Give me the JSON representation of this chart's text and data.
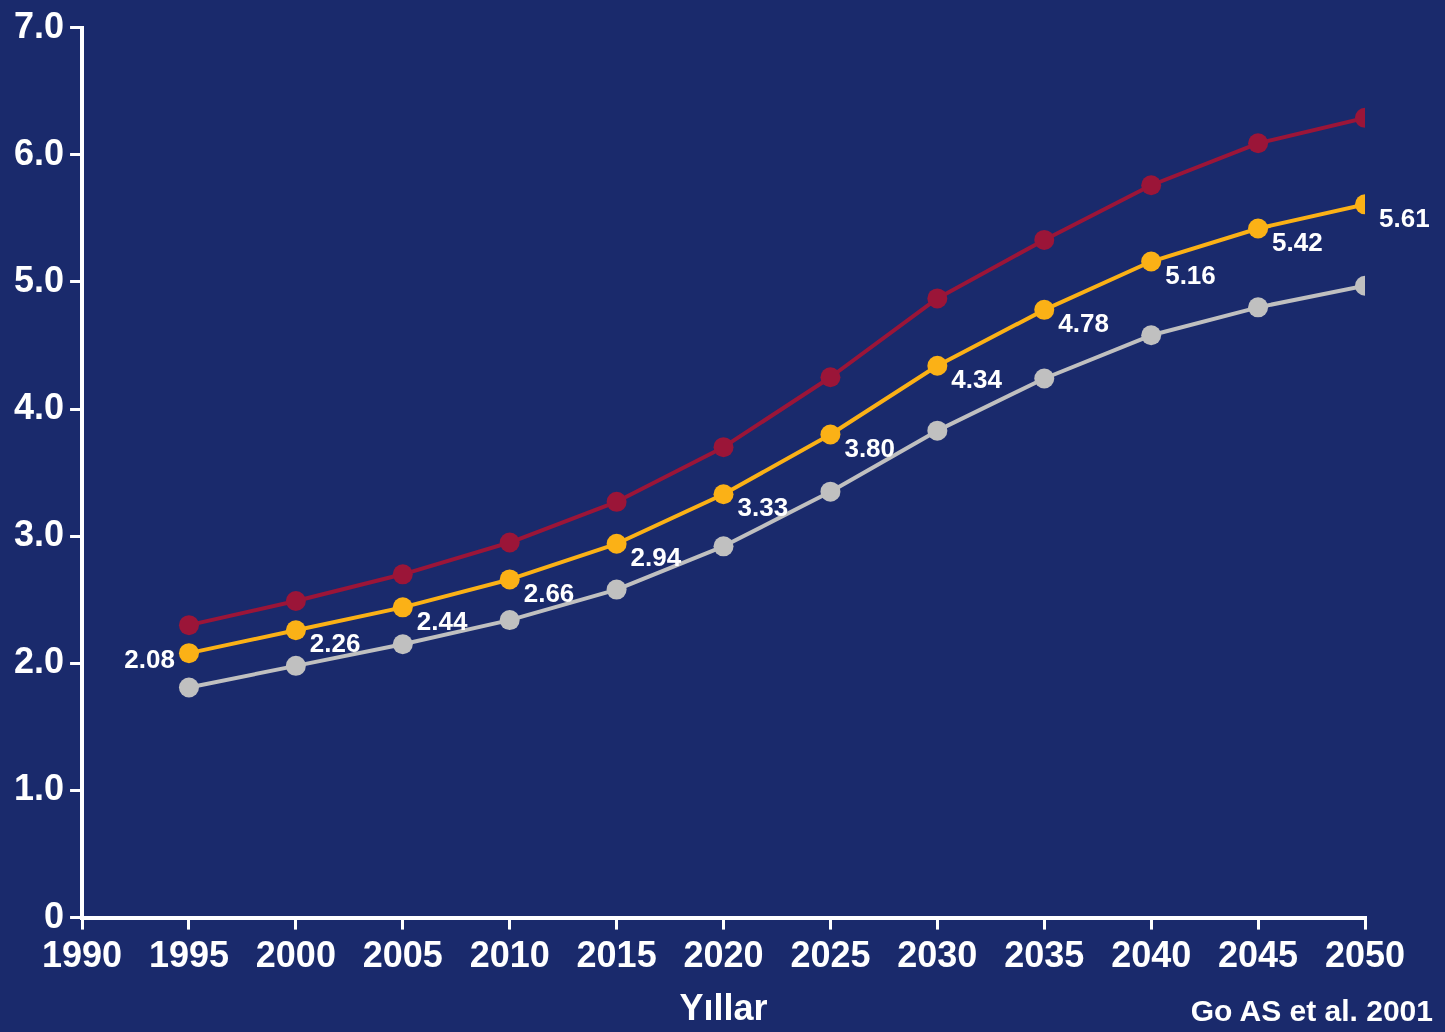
{
  "chart_data": {
    "type": "line",
    "xlabel": "Yıllar",
    "annotations": [
      "Go AS et al. 2001"
    ],
    "x": [
      1995,
      2000,
      2005,
      2010,
      2015,
      2020,
      2025,
      2030,
      2035,
      2040,
      2045,
      2050
    ],
    "xlim": [
      1990,
      2050
    ],
    "xticks": [
      1990,
      1995,
      2000,
      2005,
      2010,
      2015,
      2020,
      2025,
      2030,
      2035,
      2040,
      2045,
      2050
    ],
    "ylim": [
      0,
      7
    ],
    "yticks": [
      {
        "value": 0,
        "label": "0"
      },
      {
        "value": 1,
        "label": "1.0"
      },
      {
        "value": 2,
        "label": "2.0"
      },
      {
        "value": 3,
        "label": "3.0"
      },
      {
        "value": 4,
        "label": "4.0"
      },
      {
        "value": 5,
        "label": "5.0"
      },
      {
        "value": 6,
        "label": "6.0"
      },
      {
        "value": 7,
        "label": "7.0"
      }
    ],
    "grid": false,
    "legend": false,
    "marker": "circle",
    "line_style": "solid",
    "series": [
      {
        "color": "#9b1538",
        "values": [
          2.3,
          2.49,
          2.7,
          2.95,
          3.27,
          3.7,
          4.25,
          4.87,
          5.33,
          5.76,
          6.09,
          6.29
        ]
      },
      {
        "color": "#fbb116",
        "values": [
          2.08,
          2.26,
          2.44,
          2.66,
          2.94,
          3.33,
          3.8,
          4.34,
          4.78,
          5.16,
          5.42,
          5.61
        ],
        "value_labels": [
          "2.08",
          "2.26",
          "2.44",
          "2.66",
          "2.94",
          "3.33",
          "3.80",
          "4.34",
          "4.78",
          "5.16",
          "5.42",
          "5.61"
        ]
      },
      {
        "color": "#c0c0c0",
        "values": [
          1.81,
          1.98,
          2.15,
          2.34,
          2.58,
          2.92,
          3.35,
          3.83,
          4.24,
          4.58,
          4.8,
          4.97
        ]
      }
    ]
  }
}
